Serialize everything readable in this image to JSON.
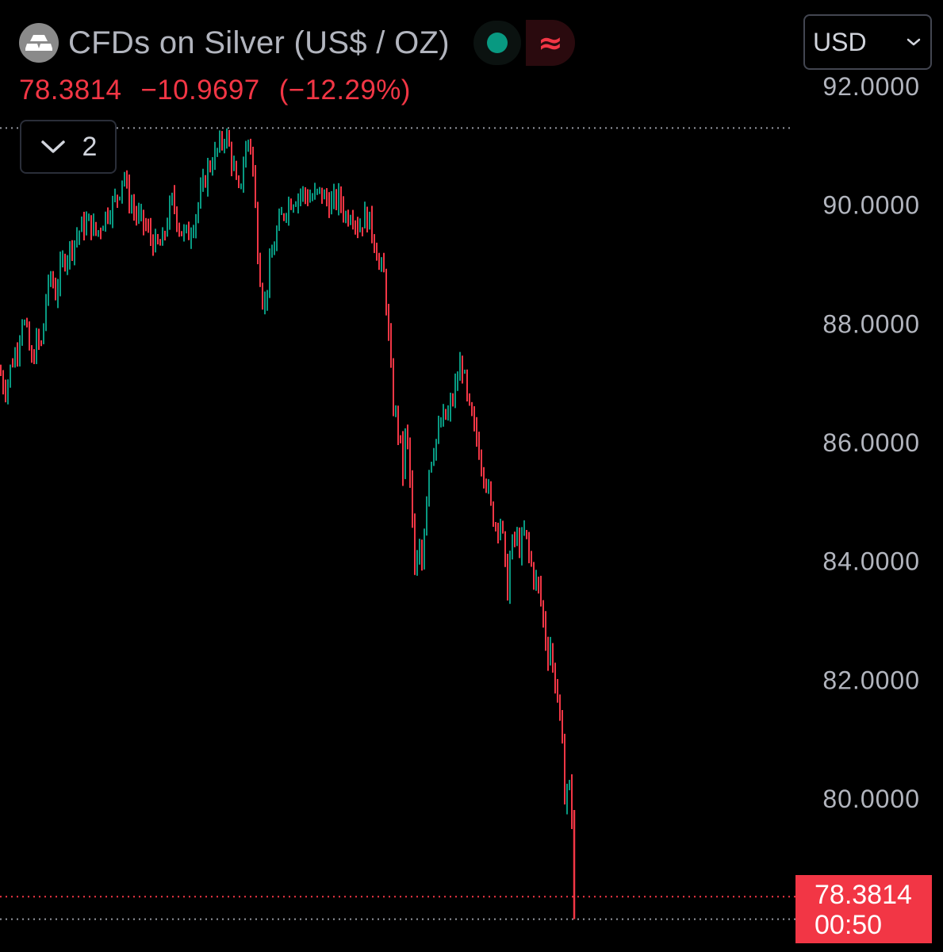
{
  "header": {
    "symbol_title": "CFDs on Silver (US$ / OZ)",
    "last_price": "78.3814",
    "change": "−10.9697",
    "change_percent": "(−12.29%)",
    "market_status": "open",
    "indicator_count": "2",
    "currency": "USD",
    "logo_icon": "silver-bars-icon",
    "delay_icon": "approximately-icon"
  },
  "price_badge": {
    "price": "78.3814",
    "countdown": "00:50"
  },
  "colors": {
    "up": "#089981",
    "down": "#f23645",
    "background": "#000000",
    "axis_text": "#b2b5be",
    "dotted_line": "#9598a1"
  },
  "chart_data": {
    "type": "ohlc",
    "title": "CFDs on Silver (US$ / OZ)",
    "ylim": [
      77.3,
      92.8
    ],
    "y_ticks": [
      "92.0000",
      "90.0000",
      "88.0000",
      "86.0000",
      "84.0000",
      "82.0000",
      "80.0000"
    ],
    "y_tick_values": [
      92,
      90,
      88,
      86,
      84,
      82,
      80
    ],
    "high_reference": 91.3,
    "last_reference": 78.38,
    "low_reference": 78.0,
    "grid": false,
    "path_points": [
      [
        0,
        87.2
      ],
      [
        3,
        87.0
      ],
      [
        8,
        86.9
      ],
      [
        14,
        87.3
      ],
      [
        22,
        87.6
      ],
      [
        28,
        88.1
      ],
      [
        34,
        87.8
      ],
      [
        40,
        87.3
      ],
      [
        46,
        87.7
      ],
      [
        52,
        87.6
      ],
      [
        58,
        88.4
      ],
      [
        64,
        88.8
      ],
      [
        70,
        88.5
      ],
      [
        78,
        89.0
      ],
      [
        86,
        89.2
      ],
      [
        94,
        89.4
      ],
      [
        102,
        89.6
      ],
      [
        112,
        89.7
      ],
      [
        122,
        89.5
      ],
      [
        132,
        89.8
      ],
      [
        142,
        90.0
      ],
      [
        150,
        90.2
      ],
      [
        156,
        90.6
      ],
      [
        160,
        90.2
      ],
      [
        166,
        90.0
      ],
      [
        172,
        89.8
      ],
      [
        180,
        89.7
      ],
      [
        188,
        89.5
      ],
      [
        196,
        89.3
      ],
      [
        204,
        89.3
      ],
      [
        212,
        89.8
      ],
      [
        218,
        90.1
      ],
      [
        224,
        89.7
      ],
      [
        230,
        89.5
      ],
      [
        238,
        89.5
      ],
      [
        246,
        89.8
      ],
      [
        254,
        90.2
      ],
      [
        262,
        90.6
      ],
      [
        270,
        90.8
      ],
      [
        278,
        91.0
      ],
      [
        284,
        91.2
      ],
      [
        290,
        90.9
      ],
      [
        296,
        90.5
      ],
      [
        300,
        90.1
      ],
      [
        306,
        90.6
      ],
      [
        312,
        91.1
      ],
      [
        316,
        91.0
      ],
      [
        320,
        90.4
      ],
      [
        324,
        89.4
      ],
      [
        330,
        88.5
      ],
      [
        334,
        88.3
      ],
      [
        338,
        88.8
      ],
      [
        344,
        89.2
      ],
      [
        350,
        89.6
      ],
      [
        356,
        89.8
      ],
      [
        362,
        90.0
      ],
      [
        370,
        90.1
      ],
      [
        380,
        90.2
      ],
      [
        392,
        90.1
      ],
      [
        404,
        90.2
      ],
      [
        416,
        90.0
      ],
      [
        428,
        90.1
      ],
      [
        436,
        89.8
      ],
      [
        444,
        89.9
      ],
      [
        452,
        89.6
      ],
      [
        460,
        89.8
      ],
      [
        466,
        89.7
      ],
      [
        472,
        89.4
      ],
      [
        478,
        89.0
      ],
      [
        484,
        88.8
      ],
      [
        488,
        88.2
      ],
      [
        492,
        87.3
      ],
      [
        496,
        86.6
      ],
      [
        500,
        86.4
      ],
      [
        504,
        86.0
      ],
      [
        508,
        85.5
      ],
      [
        512,
        86.3
      ],
      [
        516,
        85.6
      ],
      [
        520,
        84.6
      ],
      [
        524,
        83.4
      ],
      [
        528,
        84.4
      ],
      [
        532,
        84.0
      ],
      [
        536,
        84.8
      ],
      [
        540,
        85.5
      ],
      [
        546,
        85.9
      ],
      [
        552,
        86.1
      ],
      [
        558,
        86.4
      ],
      [
        564,
        86.4
      ],
      [
        570,
        86.7
      ],
      [
        576,
        87.0
      ],
      [
        582,
        87.4
      ],
      [
        586,
        87.0
      ],
      [
        590,
        86.6
      ],
      [
        596,
        86.3
      ],
      [
        602,
        86.0
      ],
      [
        608,
        85.6
      ],
      [
        614,
        85.3
      ],
      [
        620,
        84.8
      ],
      [
        626,
        84.6
      ],
      [
        632,
        84.7
      ],
      [
        636,
        84.0
      ],
      [
        640,
        83.5
      ],
      [
        644,
        84.2
      ],
      [
        650,
        84.4
      ],
      [
        656,
        84.2
      ],
      [
        662,
        84.5
      ],
      [
        668,
        84.0
      ],
      [
        674,
        83.7
      ],
      [
        680,
        83.5
      ],
      [
        686,
        82.9
      ],
      [
        690,
        82.4
      ],
      [
        694,
        82.6
      ],
      [
        698,
        82.0
      ],
      [
        702,
        81.9
      ],
      [
        706,
        81.3
      ],
      [
        710,
        80.6
      ],
      [
        713,
        79.8
      ],
      [
        716,
        80.4
      ],
      [
        720,
        80.0
      ],
      [
        722,
        79.3
      ],
      [
        724,
        78.0
      ]
    ]
  }
}
